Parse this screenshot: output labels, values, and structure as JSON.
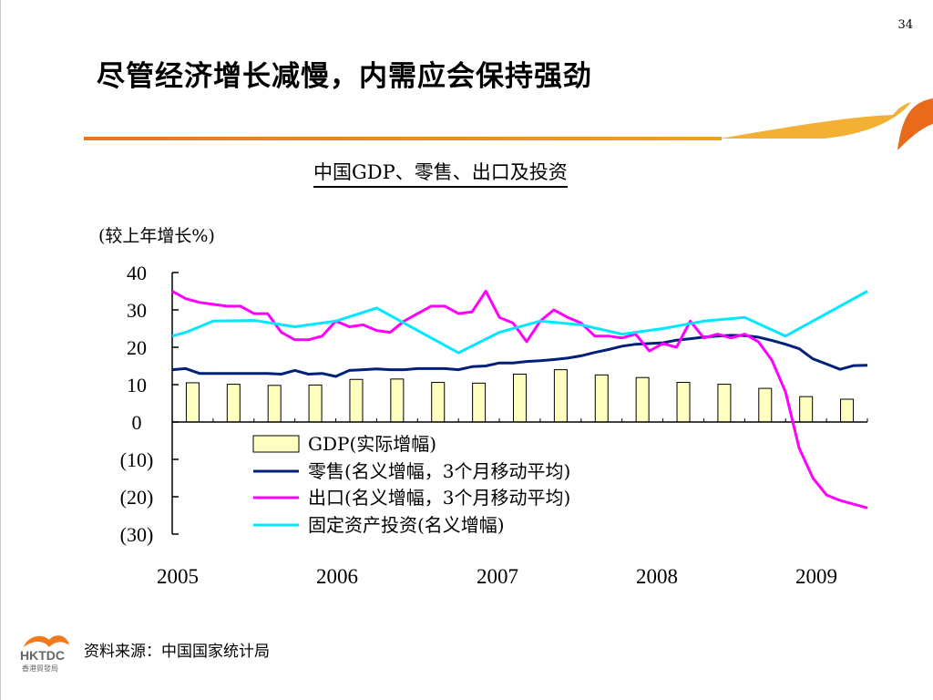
{
  "page_number": "34",
  "slide_title": "尽管经济增长减慢，内需应会保持强劲",
  "chart_title": "中国GDP、零售、出口及投资",
  "source": "资料来源：中国国家统计局",
  "logo": {
    "text": "HKTDC",
    "subtitle": "香港貿發局"
  },
  "colors": {
    "accent": "#f08020",
    "gdp_fill": "#ffffc0",
    "retail": "#00207a",
    "exports": "#ff00ff",
    "investment": "#00e8ff"
  },
  "chart_data": {
    "type": "bar",
    "ylabel": "(较上年增长%)",
    "ylim": [
      -30,
      40
    ],
    "yticks": [
      40,
      30,
      20,
      10,
      0,
      -10,
      -20,
      -30
    ],
    "ytick_labels": [
      "40",
      "30",
      "20",
      "10",
      "0",
      "(10)",
      "(20)",
      "(30)"
    ],
    "x_range": [
      2005.0,
      2009.25
    ],
    "x_tick_labels": [
      "2005",
      "2006",
      "2007",
      "2008",
      "2009"
    ],
    "legend_position": "bottom-center",
    "series": [
      {
        "name": "GDP(实际增幅)",
        "kind": "bar",
        "x": [
          2005.125,
          2005.375,
          2005.625,
          2005.875,
          2006.125,
          2006.375,
          2006.625,
          2006.875,
          2007.125,
          2007.375,
          2007.625,
          2007.875,
          2008.125,
          2008.375,
          2008.625,
          2008.875,
          2009.125
        ],
        "values": [
          10.5,
          10.1,
          9.8,
          9.9,
          11.4,
          11.5,
          10.6,
          10.4,
          12.8,
          14.0,
          12.6,
          11.9,
          10.6,
          10.1,
          9.0,
          6.8,
          6.1
        ]
      },
      {
        "name": "零售(名义增幅，3个月移动平均)",
        "kind": "line",
        "x": [
          2005.0,
          2005.083,
          2005.167,
          2005.25,
          2005.333,
          2005.417,
          2005.5,
          2005.583,
          2005.667,
          2005.75,
          2005.833,
          2005.917,
          2006.0,
          2006.083,
          2006.167,
          2006.25,
          2006.333,
          2006.417,
          2006.5,
          2006.583,
          2006.667,
          2006.75,
          2006.833,
          2006.917,
          2007.0,
          2007.083,
          2007.167,
          2007.25,
          2007.333,
          2007.417,
          2007.5,
          2007.583,
          2007.667,
          2007.75,
          2007.833,
          2007.917,
          2008.0,
          2008.083,
          2008.167,
          2008.25,
          2008.333,
          2008.417,
          2008.5,
          2008.583,
          2008.667,
          2008.75,
          2008.833,
          2008.917,
          2009.0,
          2009.083,
          2009.167,
          2009.25
        ],
        "values": [
          14,
          14.3,
          13,
          13,
          13,
          13,
          13,
          13,
          12.8,
          13.8,
          12.8,
          13,
          12.2,
          13.8,
          14,
          14.2,
          14,
          14,
          14.3,
          14.3,
          14.3,
          14,
          14.8,
          15,
          15.8,
          15.8,
          16.2,
          16.4,
          16.7,
          17.1,
          17.7,
          18.6,
          19.4,
          20.3,
          20.8,
          21.0,
          21.2,
          21.9,
          22.3,
          22.7,
          23.0,
          23.2,
          23.1,
          22.7,
          21.8,
          20.8,
          19.6,
          16.9,
          15.5,
          14.1,
          15.1,
          15.2
        ]
      },
      {
        "name": "出口(名义增幅，3个月移动平均)",
        "kind": "line",
        "x": [
          2005.0,
          2005.083,
          2005.167,
          2005.25,
          2005.333,
          2005.417,
          2005.5,
          2005.583,
          2005.667,
          2005.75,
          2005.833,
          2005.917,
          2006.0,
          2006.083,
          2006.167,
          2006.25,
          2006.333,
          2006.417,
          2006.5,
          2006.583,
          2006.667,
          2006.75,
          2006.833,
          2006.917,
          2007.0,
          2007.083,
          2007.167,
          2007.25,
          2007.333,
          2007.417,
          2007.5,
          2007.583,
          2007.667,
          2007.75,
          2007.833,
          2007.917,
          2008.0,
          2008.083,
          2008.167,
          2008.25,
          2008.333,
          2008.417,
          2008.5,
          2008.583,
          2008.667,
          2008.75,
          2008.833,
          2008.917,
          2009.0,
          2009.083,
          2009.167,
          2009.25
        ],
        "values": [
          35,
          33,
          32,
          31.5,
          31,
          31,
          29,
          29,
          24,
          22,
          22,
          23,
          27,
          25.5,
          26,
          24.5,
          24,
          27,
          29,
          31,
          31,
          29,
          29.5,
          35,
          28,
          26.5,
          21.5,
          27,
          30,
          28,
          26.5,
          23,
          23,
          22.5,
          23.5,
          19,
          21,
          20,
          27,
          22.5,
          23.5,
          22.5,
          23.5,
          21.5,
          16.5,
          8,
          -7,
          -15,
          -19.5,
          -21,
          -22,
          -23
        ]
      },
      {
        "name": "固定资产投资(名义增幅)",
        "kind": "line",
        "x": [
          2005.0,
          2005.083,
          2005.167,
          2005.25,
          2005.5,
          2005.75,
          2006.0,
          2006.25,
          2006.5,
          2006.75,
          2007.0,
          2007.25,
          2007.5,
          2007.75,
          2008.0,
          2008.25,
          2008.5,
          2008.75,
          2009.0,
          2009.25
        ],
        "values": [
          23,
          24,
          25.5,
          27,
          27.2,
          25.5,
          27,
          30.5,
          24.5,
          18.5,
          24,
          27,
          26,
          23.5,
          25,
          27,
          28,
          23,
          29,
          35
        ]
      }
    ]
  }
}
